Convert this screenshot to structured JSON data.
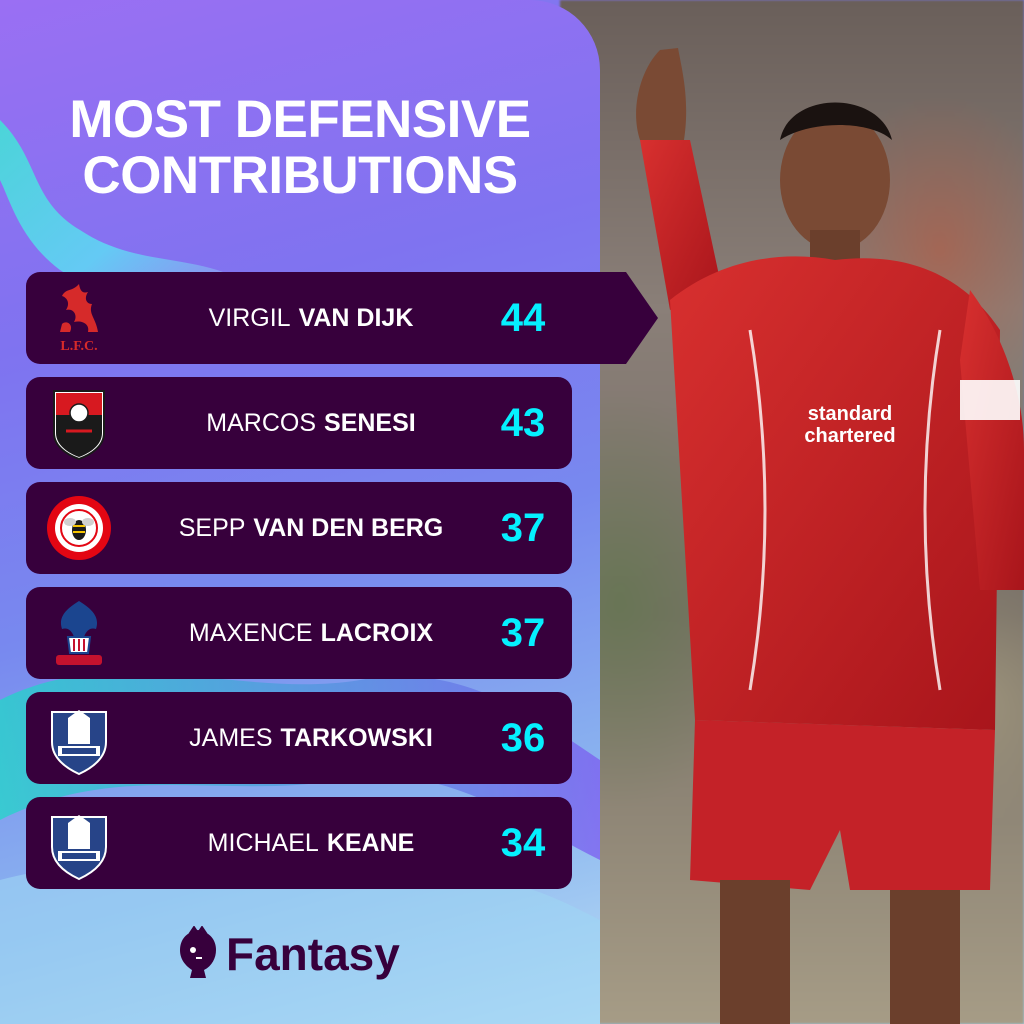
{
  "title": {
    "line1": "MOST DEFENSIVE",
    "line2": "CONTRIBUTIONS"
  },
  "colors": {
    "row_background": "#37003c",
    "value_text": "#05f0ff",
    "title_text": "#ffffff",
    "brand_text": "#37003c"
  },
  "rows": [
    {
      "first_name": "VIRGIL",
      "last_name": "VAN DIJK",
      "value": "44",
      "club_crest": "liverpool-crest-icon",
      "crest_text": "L.F.C."
    },
    {
      "first_name": "MARCOS",
      "last_name": "SENESI",
      "value": "43",
      "club_crest": "bournemouth-crest-icon"
    },
    {
      "first_name": "SEPP",
      "last_name": "VAN DEN BERG",
      "value": "37",
      "club_crest": "brentford-crest-icon"
    },
    {
      "first_name": "MAXENCE",
      "last_name": "LACROIX",
      "value": "37",
      "club_crest": "crystal-palace-crest-icon"
    },
    {
      "first_name": "JAMES",
      "last_name": "TARKOWSKI",
      "value": "36",
      "club_crest": "everton-crest-icon"
    },
    {
      "first_name": "MICHAEL",
      "last_name": "KEANE",
      "value": "34",
      "club_crest": "everton-crest-icon"
    }
  ],
  "brand": {
    "name": "Fantasy",
    "icon": "premier-league-lion-icon"
  }
}
